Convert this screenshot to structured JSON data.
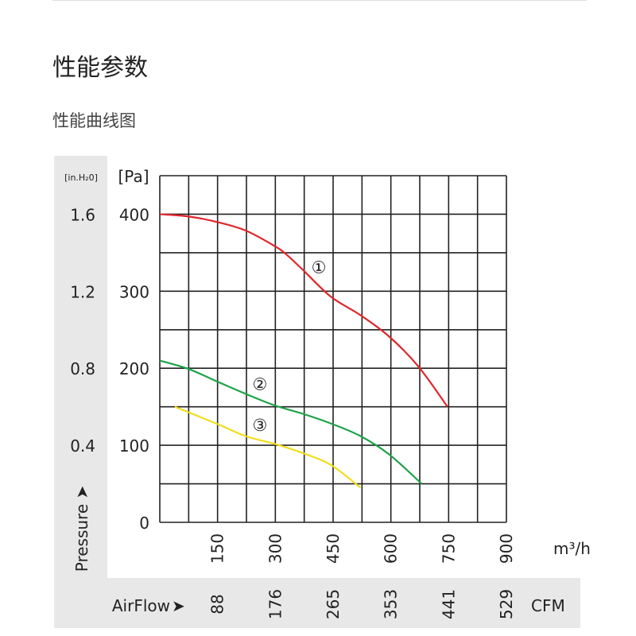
{
  "header": {
    "title": "性能参数",
    "subtitle": "性能曲线图"
  },
  "chart_data": {
    "type": "line",
    "xlabel_unit": "m³/h",
    "secondary_xlabel": "AirFlow",
    "secondary_x_unit": "CFM",
    "ylabel": "Pressure",
    "y_unit": "[Pa]",
    "secondary_y_unit": "[in.H₂0]",
    "xlim": [
      0,
      900
    ],
    "ylim": [
      0,
      450
    ],
    "grid": true,
    "x_ticks": [
      150,
      300,
      450,
      600,
      750,
      900
    ],
    "x_ticks_cfm": [
      "88",
      "176",
      "265",
      "353",
      "441",
      "529"
    ],
    "y_ticks": [
      0,
      100,
      200,
      300,
      400
    ],
    "y_ticks_inh2o": [
      "0.4",
      "0.8",
      "1.2",
      "1.6"
    ],
    "series": [
      {
        "name": "①",
        "color": "#e0262b",
        "label_at": [
          413,
          331
        ],
        "points": [
          [
            0,
            400
          ],
          [
            75,
            397
          ],
          [
            148,
            390
          ],
          [
            222,
            379
          ],
          [
            297,
            359
          ],
          [
            328,
            348
          ],
          [
            371,
            328
          ],
          [
            444,
            293
          ],
          [
            521,
            269
          ],
          [
            596,
            241
          ],
          [
            672,
            202
          ],
          [
            747,
            150
          ]
        ]
      },
      {
        "name": "②",
        "color": "#1fa34a",
        "label_at": [
          260,
          179
        ],
        "points": [
          [
            0,
            210
          ],
          [
            75,
            199
          ],
          [
            148,
            183
          ],
          [
            222,
            167
          ],
          [
            297,
            152
          ],
          [
            371,
            141
          ],
          [
            446,
            128
          ],
          [
            521,
            112
          ],
          [
            596,
            88
          ],
          [
            680,
            50
          ]
        ]
      },
      {
        "name": "③",
        "color": "#f2dd1c",
        "label_at": [
          260,
          126
        ],
        "points": [
          [
            39,
            150
          ],
          [
            148,
            128
          ],
          [
            222,
            112
          ],
          [
            297,
            102
          ],
          [
            371,
            90
          ],
          [
            446,
            74
          ],
          [
            521,
            45
          ]
        ]
      }
    ]
  }
}
